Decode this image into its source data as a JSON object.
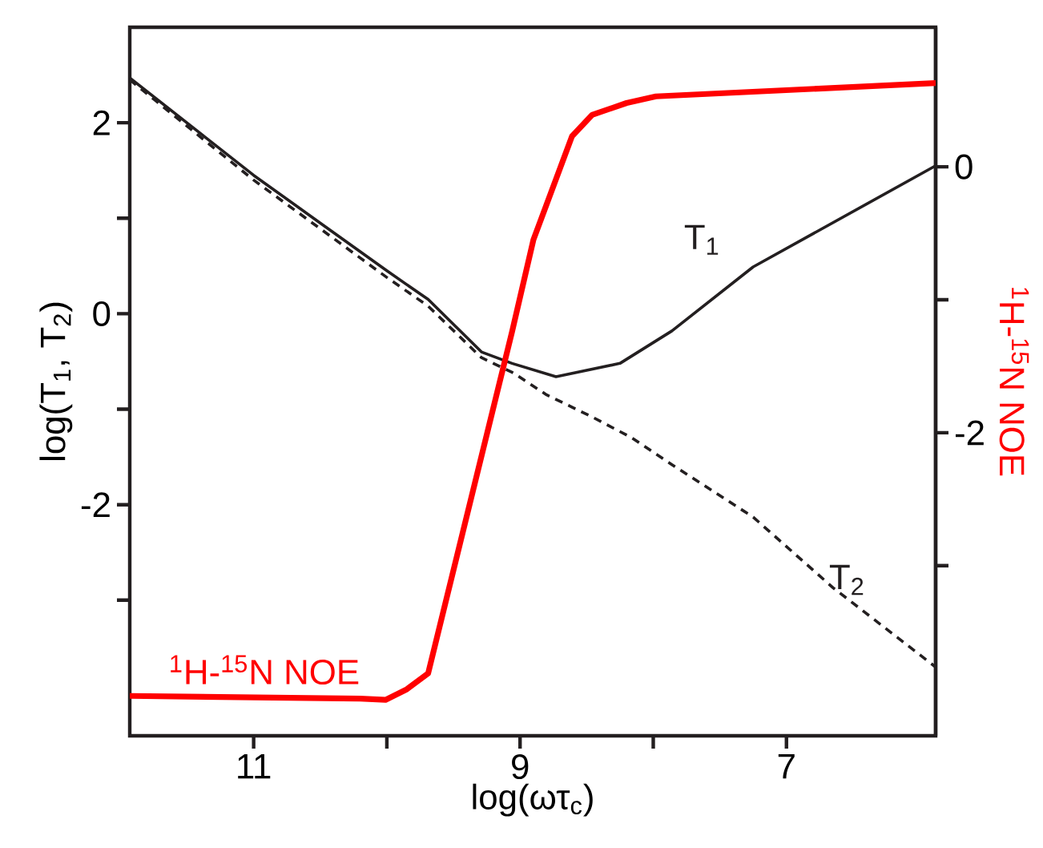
{
  "chart_data": {
    "type": "line",
    "xlabel": "log(ωτ$_{c}$)",
    "ylabel": "log(T$_{1}$, T$_{2}$)",
    "y2label": "$^{1}$H-$^{15}$N NOE",
    "xlim": [
      11.93,
      5.88
    ],
    "xticks": [
      11,
      {
        "value": 10,
        "label": null
      },
      9,
      {
        "value": 8,
        "label": null
      },
      7
    ],
    "ylim": [
      -4.42,
      3.0
    ],
    "yticks": [
      {
        "value": -3,
        "label": null
      },
      -2,
      {
        "value": -1,
        "label": null
      },
      0,
      {
        "value": 1,
        "label": null
      },
      2
    ],
    "y2lim": [
      -4.28,
      1.05
    ],
    "y2ticks": [
      {
        "value": -3,
        "label": null
      },
      -2,
      {
        "value": -1,
        "label": null
      },
      0
    ],
    "legend": false,
    "grid": false,
    "marker": "none",
    "series": [
      {
        "name": "T$_{1}$",
        "color": "#231f20",
        "line_style": "solid",
        "x": [
          11.93,
          11.0,
          10.49,
          10.0,
          9.69,
          9.29,
          9.06,
          8.73,
          8.25,
          7.86,
          7.25,
          5.88
        ],
        "values": [
          2.47,
          1.45,
          0.94,
          0.45,
          0.15,
          -0.4,
          -0.52,
          -0.66,
          -0.52,
          -0.18,
          0.49,
          1.55
        ]
      },
      {
        "name": "T$_{2}$",
        "color": "#231f20",
        "line_style": "dashed",
        "x": [
          11.93,
          11.0,
          10.49,
          10.0,
          9.69,
          9.29,
          9.05,
          8.8,
          8.46,
          8.16,
          7.86,
          7.25,
          6.65,
          5.88
        ],
        "values": [
          2.45,
          1.4,
          0.88,
          0.38,
          0.08,
          -0.46,
          -0.62,
          -0.85,
          -1.08,
          -1.3,
          -1.58,
          -2.13,
          -2.87,
          -3.7
        ]
      },
      {
        "name": "$^{1}$H-$^{15}$N NOE",
        "color": "#ff0000",
        "line_style": "solid",
        "axis": "y2",
        "x": [
          11.93,
          10.2,
          10.01,
          9.85,
          9.69,
          9.06,
          8.9,
          8.61,
          8.46,
          8.2,
          7.98,
          5.88
        ],
        "values": [
          -3.98,
          -4.0,
          -4.01,
          -3.93,
          -3.81,
          -1.24,
          -0.55,
          0.23,
          0.39,
          0.48,
          0.53,
          0.63
        ]
      }
    ]
  }
}
